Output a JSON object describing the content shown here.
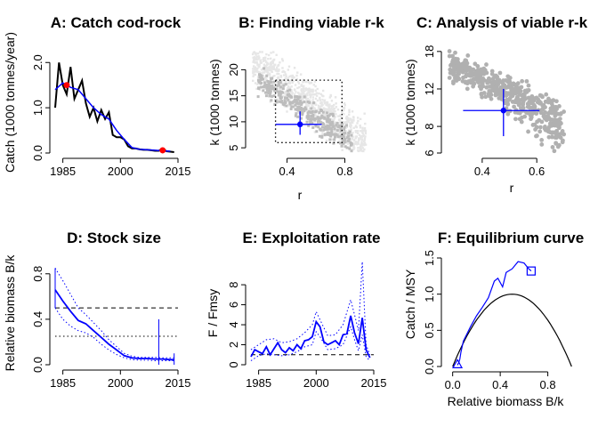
{
  "chart_data": [
    {
      "id": "A",
      "type": "line",
      "title": "A: Catch cod-rock",
      "xlabel": "",
      "ylabel": "Catch (1000 tonnes/year)",
      "xlim": [
        1983,
        2015
      ],
      "ylim": [
        0,
        2.3
      ],
      "xticks": [
        1985,
        2000,
        2015
      ],
      "yticks": [
        0.0,
        1.0,
        2.0
      ],
      "xtick_labels": [
        "1985",
        "2000",
        "2015"
      ],
      "ytick_labels": [
        "0.0",
        "1.0",
        "2.0"
      ],
      "series": [
        {
          "color": "#000000",
          "x": [
            1983,
            1984,
            1985,
            1986,
            1987,
            1988,
            1989,
            1990,
            1991,
            1992,
            1993,
            1994,
            1995,
            1996,
            1997,
            1998,
            1999,
            2000,
            2001,
            2002,
            2003,
            2004,
            2005,
            2006,
            2007,
            2008,
            2009,
            2010,
            2011,
            2012,
            2013,
            2014
          ],
          "y": [
            1.0,
            2.0,
            1.5,
            1.3,
            1.9,
            1.2,
            1.4,
            1.6,
            1.1,
            0.8,
            1.0,
            0.7,
            0.95,
            0.75,
            0.9,
            0.4,
            0.35,
            0.35,
            0.3,
            0.15,
            0.1,
            0.1,
            0.08,
            0.07,
            0.07,
            0.06,
            0.05,
            0.05,
            0.1,
            0.04,
            0.03,
            0.02
          ]
        },
        {
          "color": "#0000ff",
          "x": [
            1983,
            1985,
            1987,
            1989,
            1991,
            1993,
            1995,
            1997,
            1999,
            2001,
            2003,
            2005,
            2007,
            2009,
            2011,
            2013
          ],
          "y": [
            1.4,
            1.55,
            1.45,
            1.4,
            1.2,
            1.0,
            0.85,
            0.75,
            0.5,
            0.3,
            0.12,
            0.08,
            0.07,
            0.06,
            0.05,
            0.04
          ]
        }
      ],
      "markers": [
        {
          "x": 1986,
          "y": 1.5,
          "color": "#ff0000"
        },
        {
          "x": 2011,
          "y": 0.06,
          "color": "#ff0000"
        }
      ]
    },
    {
      "id": "B",
      "type": "scatter",
      "title": "B: Finding viable r-k",
      "xlabel": "r",
      "ylabel": "k (1000 tonnes)",
      "xlim": [
        0.15,
        1.0
      ],
      "ylim": [
        4,
        24
      ],
      "xticks": [
        0.4,
        0.8
      ],
      "yticks": [
        5,
        10,
        15,
        20
      ],
      "xtick_labels": [
        "0.4",
        "0.8"
      ],
      "ytick_labels": [
        "5",
        "10",
        "15",
        "20"
      ],
      "cloud_light": {
        "color": "#e6e6e6",
        "r_range": [
          0.15,
          0.95
        ],
        "k_at_r": [
          22,
          6
        ],
        "spread": 4
      },
      "cloud_dark": {
        "color": "#bdbdbd",
        "r_range": [
          0.2,
          0.85
        ],
        "k_at_r": [
          18,
          6
        ],
        "spread": 2.5
      },
      "box": {
        "r": [
          0.32,
          0.78
        ],
        "k": [
          6,
          18
        ]
      },
      "estimate": {
        "r": 0.49,
        "k": 9.5,
        "r_ci": [
          0.32,
          0.64
        ],
        "k_ci": [
          7.5,
          12
        ],
        "color": "#0000ff"
      }
    },
    {
      "id": "C",
      "type": "scatter",
      "title": "C: Analysis of viable r-k",
      "xlabel": "r",
      "ylabel": "k (1000 tonnes)",
      "xlim": [
        0.27,
        0.72
      ],
      "ylim": [
        6,
        18.5
      ],
      "xticks": [
        0.4,
        0.6
      ],
      "yticks": [
        6,
        8,
        12,
        18
      ],
      "xtick_labels": [
        "0.4",
        "0.6"
      ],
      "ytick_labels": [
        "6",
        "8",
        "12",
        "18"
      ],
      "cloud": {
        "color": "#b0b0b0",
        "r_range": [
          0.28,
          0.7
        ],
        "k_at_r": [
          15.5,
          7.8
        ],
        "spread": 2.2
      },
      "estimate": {
        "r": 0.478,
        "k": 9.5,
        "r_ci": [
          0.33,
          0.61
        ],
        "k_ci": [
          7.2,
          12
        ],
        "color": "#0000ff"
      }
    },
    {
      "id": "D",
      "type": "line",
      "title": "D: Stock size",
      "xlabel": "",
      "ylabel": "Relative biomass B/k",
      "xlim": [
        1983,
        2015
      ],
      "ylim": [
        0,
        0.9
      ],
      "xticks": [
        1985,
        2000,
        2015
      ],
      "yticks": [
        0.0,
        0.4,
        0.8
      ],
      "xtick_labels": [
        "1985",
        "2000",
        "2015"
      ],
      "ytick_labels": [
        "0.0",
        "0.4",
        "0.8"
      ],
      "hlines": [
        {
          "y": 0.5,
          "style": "dashed"
        },
        {
          "y": 0.25,
          "style": "dotted"
        }
      ],
      "median": {
        "x": [
          1983,
          1985,
          1987,
          1989,
          1991,
          1993,
          1995,
          1997,
          1999,
          2001,
          2003,
          2005,
          2007,
          2009,
          2011,
          2013,
          2014
        ],
        "y": [
          0.66,
          0.56,
          0.47,
          0.39,
          0.36,
          0.3,
          0.24,
          0.18,
          0.13,
          0.08,
          0.06,
          0.055,
          0.055,
          0.05,
          0.05,
          0.045,
          0.045
        ]
      },
      "upper": {
        "x": [
          1983,
          1985,
          1987,
          1989,
          1991,
          1993,
          1995,
          1997,
          1999,
          2001,
          2003,
          2005,
          2007,
          2009,
          2011,
          2013,
          2014
        ],
        "y": [
          0.85,
          0.74,
          0.62,
          0.5,
          0.44,
          0.37,
          0.3,
          0.22,
          0.16,
          0.1,
          0.075,
          0.065,
          0.065,
          0.065,
          0.06,
          0.06,
          0.06
        ]
      },
      "lower": {
        "x": [
          1983,
          1985,
          1987,
          1989,
          1991,
          1993,
          1995,
          1997,
          1999,
          2001,
          2003,
          2005,
          2007,
          2009,
          2011,
          2013,
          2014
        ],
        "y": [
          0.5,
          0.4,
          0.34,
          0.3,
          0.28,
          0.24,
          0.18,
          0.13,
          0.09,
          0.06,
          0.045,
          0.04,
          0.04,
          0.035,
          0.035,
          0.035,
          0.035
        ]
      },
      "start_ci": {
        "x": 1983,
        "y": [
          0.5,
          0.85
        ]
      },
      "end_ci": {
        "x": 2014,
        "y": [
          0.0,
          0.1
        ]
      },
      "marker_ci": {
        "x": 2010,
        "y": [
          0.0,
          0.4
        ]
      }
    },
    {
      "id": "E",
      "type": "line",
      "title": "E: Exploitation rate",
      "xlabel": "",
      "ylabel": "F / Fmsy",
      "xlim": [
        1983,
        2015
      ],
      "ylim": [
        0,
        10.5
      ],
      "xticks": [
        1985,
        2000,
        2015
      ],
      "yticks": [
        0,
        2,
        4,
        6,
        8
      ],
      "xtick_labels": [
        "1985",
        "2000",
        "2015"
      ],
      "ytick_labels": [
        "0",
        "2",
        "4",
        "6",
        "8"
      ],
      "hlines": [
        {
          "y": 1,
          "style": "dashed"
        }
      ],
      "median": {
        "x": [
          1983,
          1984,
          1985,
          1986,
          1987,
          1988,
          1989,
          1990,
          1991,
          1992,
          1993,
          1994,
          1995,
          1996,
          1997,
          1998,
          1999,
          2000,
          2001,
          2002,
          2003,
          2004,
          2005,
          2006,
          2007,
          2008,
          2009,
          2010,
          2011,
          2012,
          2013,
          2014
        ],
        "y": [
          0.8,
          1.5,
          1.3,
          1.1,
          1.8,
          1.0,
          1.6,
          2.2,
          1.5,
          1.2,
          1.7,
          1.4,
          2.0,
          1.6,
          2.4,
          2.5,
          2.8,
          4.3,
          3.8,
          2.3,
          2.0,
          2.2,
          2.4,
          2.0,
          3.0,
          3.1,
          4.9,
          3.2,
          2.1,
          4.7,
          1.5,
          0.7
        ]
      },
      "upper": {
        "x": [
          1983,
          1985,
          1987,
          1989,
          1991,
          1993,
          1995,
          1997,
          1999,
          2000,
          2001,
          2003,
          2005,
          2007,
          2009,
          2010,
          2011,
          2012,
          2013,
          2014
        ],
        "y": [
          1.5,
          2.0,
          2.5,
          2.6,
          2.2,
          2.3,
          2.6,
          3.2,
          4.0,
          5.3,
          4.5,
          2.9,
          3.0,
          4.0,
          6.5,
          5.0,
          3.4,
          10.3,
          2.0,
          1.0
        ]
      },
      "lower": {
        "x": [
          1983,
          1985,
          1987,
          1989,
          1991,
          1993,
          1995,
          1997,
          1999,
          2000,
          2001,
          2003,
          2005,
          2007,
          2009,
          2010,
          2011,
          2012,
          2013,
          2014
        ],
        "y": [
          0.4,
          0.9,
          1.1,
          1.0,
          0.9,
          1.0,
          1.3,
          1.8,
          2.0,
          3.3,
          2.8,
          1.5,
          1.6,
          2.0,
          3.8,
          2.5,
          1.4,
          3.0,
          0.8,
          0.4
        ]
      }
    },
    {
      "id": "F",
      "type": "line",
      "title": "F: Equilibrium curve",
      "xlabel": "Relative biomass B/k",
      "ylabel": "Catch / MSY",
      "xlim": [
        -0.05,
        1.02
      ],
      "ylim": [
        0,
        1.5
      ],
      "xticks": [
        0.0,
        0.4,
        0.8
      ],
      "yticks": [
        0.0,
        0.5,
        1.0,
        1.5
      ],
      "xtick_labels": [
        "0.0",
        "0.4",
        "0.8"
      ],
      "ytick_labels": [
        "0.0",
        "0.5",
        "1.0",
        "1.5"
      ],
      "curve_color": "#000000",
      "trajectory": {
        "color": "#0000ff",
        "x": [
          0.04,
          0.05,
          0.06,
          0.07,
          0.09,
          0.12,
          0.15,
          0.2,
          0.25,
          0.3,
          0.35,
          0.38,
          0.42,
          0.45,
          0.5,
          0.55,
          0.6,
          0.64,
          0.66
        ],
        "y": [
          0.02,
          0.05,
          0.1,
          0.2,
          0.35,
          0.45,
          0.55,
          0.7,
          0.82,
          0.95,
          1.18,
          1.22,
          1.1,
          1.3,
          1.35,
          1.45,
          1.43,
          1.35,
          1.32
        ]
      },
      "start_marker": {
        "x": 0.66,
        "y": 1.32
      },
      "end_marker": {
        "x": 0.04,
        "y": 0.02
      }
    }
  ]
}
